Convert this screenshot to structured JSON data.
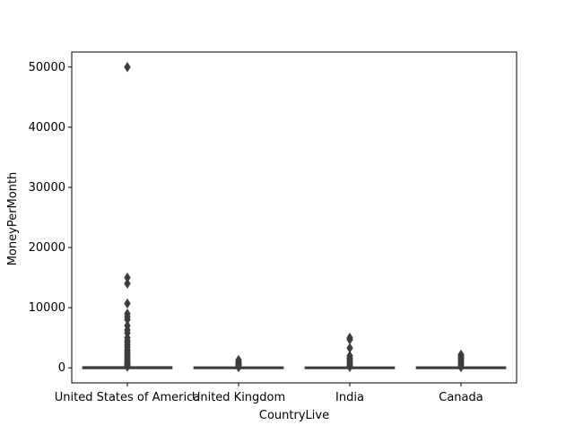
{
  "chart_data": {
    "type": "box",
    "title": "",
    "xlabel": "CountryLive",
    "ylabel": "MoneyPerMonth",
    "categories": [
      "United States of America",
      "United Kingdom",
      "India",
      "Canada"
    ],
    "ylim": [
      -2500,
      52500
    ],
    "yticks": [
      0,
      10000,
      20000,
      30000,
      40000,
      50000
    ],
    "ytick_labels": [
      "0",
      "10000",
      "20000",
      "30000",
      "40000",
      "50000"
    ],
    "grid": false,
    "legend": "none",
    "box_color": "#3d3d3d",
    "boxes": [
      {
        "category": "United States of America",
        "q1": 0,
        "median": 3,
        "q3": 50,
        "whisker_low": 0,
        "whisker_high": 125,
        "outliers": [
          50000,
          15000,
          14000,
          10700,
          9000,
          8500,
          8000,
          7000,
          6300,
          5800,
          5000,
          4500,
          4200,
          3800,
          3400,
          3000,
          2700,
          2300,
          2000,
          1700,
          1400,
          1100,
          900,
          700,
          500,
          300,
          200
        ]
      },
      {
        "category": "United Kingdom",
        "q1": 0,
        "median": 0,
        "q3": 20,
        "whisker_low": 0,
        "whisker_high": 50,
        "outliers": [
          1300,
          1000,
          800,
          600,
          400,
          200,
          100
        ]
      },
      {
        "category": "India",
        "q1": 0,
        "median": 0,
        "q3": 10,
        "whisker_low": 0,
        "whisker_high": 25,
        "outliers": [
          5000,
          4700,
          3300,
          2000,
          1600,
          1300,
          1000,
          800,
          500,
          300,
          150
        ]
      },
      {
        "category": "Canada",
        "q1": 0,
        "median": 0,
        "q3": 25,
        "whisker_low": 0,
        "whisker_high": 60,
        "outliers": [
          2200,
          1900,
          1600,
          1300,
          1000,
          700,
          400,
          200,
          100
        ]
      }
    ]
  }
}
